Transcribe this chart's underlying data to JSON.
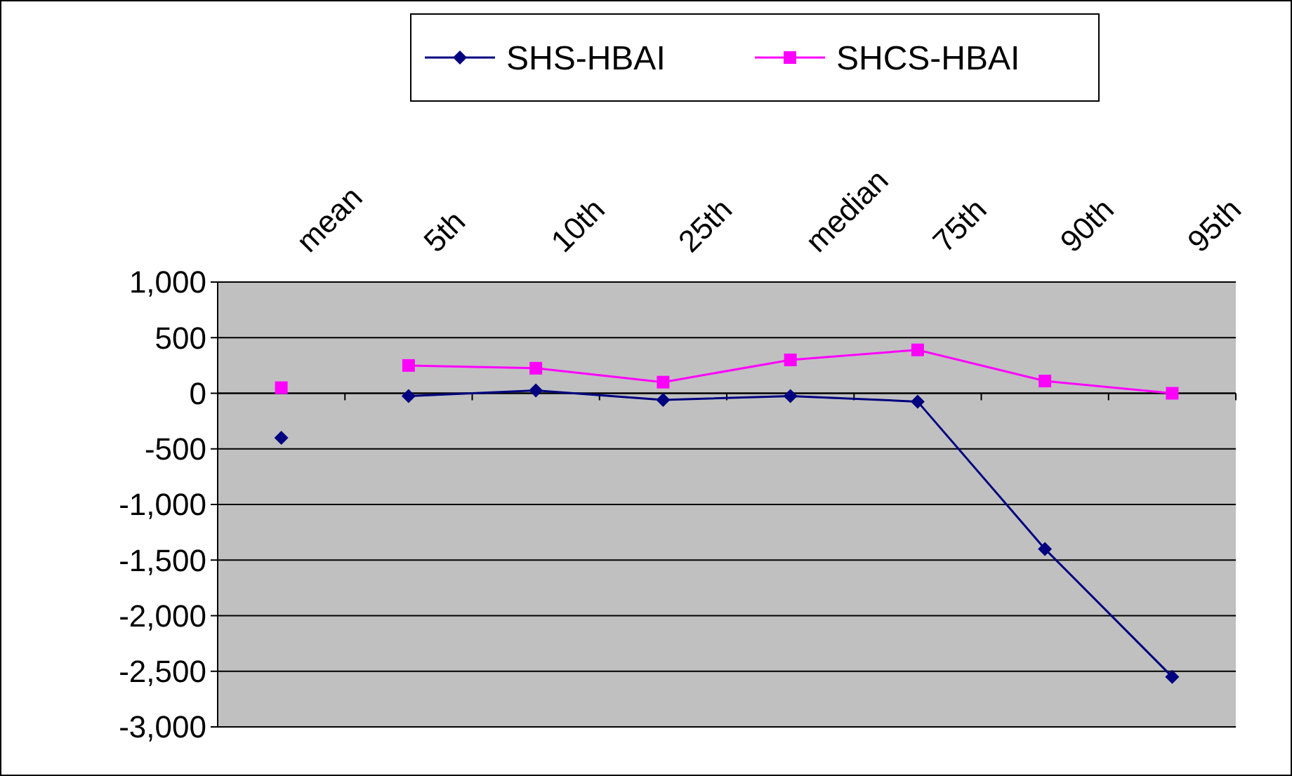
{
  "chart_data": {
    "type": "line",
    "categories": [
      "mean",
      "5th",
      "10th",
      "25th",
      "median",
      "75th",
      "90th",
      "95th"
    ],
    "series": [
      {
        "name": "SHS-HBAI",
        "color": "#000080",
        "marker": "diamond",
        "values": [
          null,
          -25,
          25,
          -60,
          -25,
          -75,
          -1400,
          -2550
        ]
      },
      {
        "type": "scatter",
        "color": "#000080",
        "marker": "diamond",
        "values": [
          -400,
          null,
          null,
          null,
          null,
          null,
          null,
          null
        ]
      },
      {
        "name": "SHCS-HBAI",
        "color": "#ff00ff",
        "marker": "square",
        "values": [
          null,
          250,
          225,
          100,
          300,
          390,
          110,
          0
        ]
      },
      {
        "type": "scatter",
        "color": "#ff00ff",
        "marker": "square",
        "values": [
          50,
          null,
          null,
          null,
          null,
          null,
          null,
          null
        ]
      }
    ],
    "ylim": [
      -3000,
      1000
    ],
    "yticks": [
      {
        "value": -3000,
        "label": "-3,000"
      },
      {
        "value": -2500,
        "label": "-2,500"
      },
      {
        "value": -2000,
        "label": "-2,000"
      },
      {
        "value": -1500,
        "label": "-1,500"
      },
      {
        "value": -1000,
        "label": "-1,000"
      },
      {
        "value": -500,
        "label": "-500"
      },
      0,
      500,
      {
        "value": 1000,
        "label": "1,000"
      }
    ],
    "grid": "y",
    "legend": "top"
  }
}
